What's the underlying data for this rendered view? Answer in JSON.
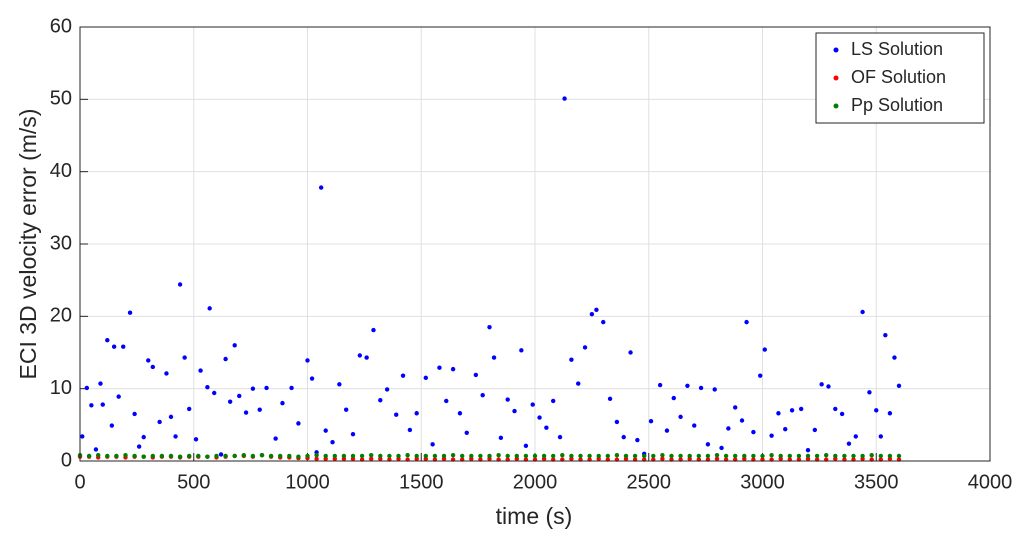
{
  "chart_data": {
    "type": "scatter",
    "xlabel": "time (s)",
    "ylabel": "ECI 3D velocity error (m/s)",
    "xlim": [
      0,
      4000
    ],
    "xticks": [
      0,
      500,
      1000,
      1500,
      2000,
      2500,
      3000,
      3500,
      4000
    ],
    "ylim": [
      0,
      60
    ],
    "yticks": [
      0,
      10,
      20,
      30,
      40,
      50,
      60
    ],
    "grid": true,
    "legend": "northeast",
    "series": [
      {
        "name": "LS Solution",
        "color": "#0000ff",
        "x": [
          10,
          30,
          50,
          70,
          90,
          100,
          120,
          140,
          150,
          170,
          190,
          220,
          240,
          260,
          280,
          300,
          320,
          350,
          380,
          400,
          420,
          440,
          460,
          480,
          510,
          530,
          560,
          570,
          590,
          620,
          640,
          660,
          680,
          700,
          730,
          760,
          790,
          820,
          860,
          890,
          930,
          960,
          1000,
          1020,
          1040,
          1060,
          1080,
          1110,
          1140,
          1170,
          1200,
          1230,
          1260,
          1290,
          1320,
          1350,
          1390,
          1420,
          1450,
          1480,
          1520,
          1550,
          1580,
          1610,
          1640,
          1670,
          1700,
          1740,
          1770,
          1800,
          1820,
          1850,
          1880,
          1910,
          1940,
          1960,
          1990,
          2020,
          2050,
          2080,
          2110,
          2130,
          2160,
          2190,
          2220,
          2250,
          2270,
          2300,
          2330,
          2360,
          2390,
          2420,
          2450,
          2480,
          2510,
          2550,
          2580,
          2610,
          2640,
          2670,
          2700,
          2730,
          2760,
          2790,
          2820,
          2850,
          2880,
          2910,
          2930,
          2960,
          2990,
          3010,
          3040,
          3070,
          3100,
          3130,
          3170,
          3200,
          3230,
          3260,
          3290,
          3320,
          3350,
          3380,
          3410,
          3440,
          3470,
          3500,
          3520,
          3540,
          3560,
          3580,
          3600
        ],
        "values": [
          3.4,
          10.1,
          7.7,
          1.6,
          10.7,
          7.8,
          16.7,
          4.9,
          15.8,
          8.9,
          15.8,
          20.5,
          6.5,
          2.0,
          3.3,
          13.9,
          13.0,
          5.4,
          12.1,
          6.1,
          3.4,
          24.4,
          14.3,
          7.2,
          3.0,
          12.5,
          10.2,
          21.1,
          9.4,
          0.9,
          14.1,
          8.2,
          16.0,
          9.0,
          6.7,
          10.0,
          7.1,
          10.1,
          3.1,
          8.0,
          10.1,
          5.2,
          13.9,
          11.4,
          1.2,
          37.8,
          4.2,
          2.6,
          10.6,
          7.1,
          3.7,
          14.6,
          14.3,
          18.1,
          8.4,
          9.9,
          6.4,
          11.8,
          4.3,
          6.6,
          11.5,
          2.3,
          12.9,
          8.3,
          12.7,
          6.6,
          3.9,
          11.9,
          9.1,
          18.5,
          14.3,
          3.2,
          8.5,
          6.9,
          15.3,
          2.1,
          7.8,
          6.0,
          4.6,
          8.3,
          3.3,
          50.1,
          14.0,
          10.7,
          15.7,
          20.3,
          20.9,
          19.2,
          8.6,
          5.4,
          3.3,
          15.0,
          2.9,
          1.0,
          5.5,
          10.5,
          4.2,
          8.7,
          6.1,
          10.4,
          4.9,
          10.1,
          2.3,
          9.9,
          1.8,
          4.5,
          7.4,
          5.6,
          19.2,
          4.0,
          11.8,
          15.4,
          3.5,
          6.6,
          4.4,
          7.0,
          7.2,
          1.5,
          4.3,
          10.6,
          10.3,
          7.2,
          6.5,
          2.4,
          3.4,
          20.6,
          9.5,
          7.0,
          3.4,
          17.4,
          6.6,
          14.3,
          10.4
        ]
      },
      {
        "name": "OF Solution",
        "color": "#ff0000",
        "x": [
          0,
          40,
          80,
          120,
          160,
          200,
          240,
          280,
          320,
          360,
          400,
          440,
          480,
          520,
          560,
          600,
          640,
          680,
          720,
          760,
          800,
          840,
          880,
          920,
          960,
          1000,
          1040,
          1080,
          1120,
          1160,
          1200,
          1240,
          1280,
          1320,
          1360,
          1400,
          1440,
          1480,
          1520,
          1560,
          1600,
          1640,
          1680,
          1720,
          1760,
          1800,
          1840,
          1880,
          1920,
          1960,
          2000,
          2040,
          2080,
          2120,
          2160,
          2200,
          2240,
          2280,
          2320,
          2360,
          2400,
          2440,
          2480,
          2520,
          2560,
          2600,
          2640,
          2680,
          2720,
          2760,
          2800,
          2840,
          2880,
          2920,
          2960,
          3000,
          3040,
          3080,
          3120,
          3160,
          3200,
          3240,
          3280,
          3320,
          3360,
          3400,
          3440,
          3480,
          3520,
          3560,
          3600
        ],
        "values": [
          0.6,
          0.6,
          0.5,
          0.6,
          0.6,
          0.5,
          0.6,
          0.6,
          0.5,
          0.6,
          0.6,
          0.5,
          0.6,
          0.6,
          0.6,
          0.5,
          0.6,
          0.7,
          0.7,
          0.6,
          0.8,
          0.6,
          0.5,
          0.5,
          0.4,
          0.4,
          0.3,
          0.3,
          0.3,
          0.3,
          0.3,
          0.2,
          0.3,
          0.3,
          0.2,
          0.3,
          0.2,
          0.3,
          0.3,
          0.2,
          0.3,
          0.2,
          0.2,
          0.3,
          0.2,
          0.3,
          0.2,
          0.2,
          0.3,
          0.2,
          0.2,
          0.3,
          0.2,
          0.2,
          0.3,
          0.2,
          0.2,
          0.3,
          0.2,
          0.2,
          0.3,
          0.2,
          0.2,
          0.2,
          0.3,
          0.2,
          0.2,
          0.3,
          0.2,
          0.2,
          0.3,
          0.2,
          0.2,
          0.3,
          0.2,
          0.2,
          0.2,
          0.3,
          0.2,
          0.2,
          0.3,
          0.2,
          0.2,
          0.3,
          0.2,
          0.2,
          0.3,
          0.2,
          0.2,
          0.3,
          0.2
        ]
      },
      {
        "name": "Pp Solution",
        "color": "#008000",
        "x": [
          0,
          40,
          80,
          120,
          160,
          200,
          240,
          280,
          320,
          360,
          400,
          440,
          480,
          520,
          560,
          600,
          640,
          680,
          720,
          760,
          800,
          840,
          880,
          920,
          960,
          1000,
          1040,
          1080,
          1120,
          1160,
          1200,
          1240,
          1280,
          1320,
          1360,
          1400,
          1440,
          1480,
          1520,
          1560,
          1600,
          1640,
          1680,
          1720,
          1760,
          1800,
          1840,
          1880,
          1920,
          1960,
          2000,
          2040,
          2080,
          2120,
          2160,
          2200,
          2240,
          2280,
          2320,
          2360,
          2400,
          2440,
          2480,
          2520,
          2560,
          2600,
          2640,
          2680,
          2720,
          2760,
          2800,
          2840,
          2880,
          2920,
          2960,
          3000,
          3040,
          3080,
          3120,
          3160,
          3200,
          3240,
          3280,
          3320,
          3360,
          3400,
          3440,
          3480,
          3520,
          3560,
          3600
        ],
        "values": [
          0.8,
          0.7,
          0.8,
          0.7,
          0.7,
          0.8,
          0.7,
          0.6,
          0.7,
          0.7,
          0.7,
          0.6,
          0.7,
          0.7,
          0.6,
          0.7,
          0.7,
          0.7,
          0.8,
          0.7,
          0.8,
          0.7,
          0.7,
          0.7,
          0.6,
          0.7,
          0.8,
          0.7,
          0.7,
          0.7,
          0.7,
          0.7,
          0.8,
          0.7,
          0.7,
          0.7,
          0.8,
          0.7,
          0.7,
          0.7,
          0.7,
          0.8,
          0.7,
          0.7,
          0.7,
          0.7,
          0.8,
          0.7,
          0.7,
          0.7,
          0.7,
          0.7,
          0.7,
          0.8,
          0.7,
          0.7,
          0.7,
          0.7,
          0.7,
          0.8,
          0.7,
          0.7,
          0.7,
          0.7,
          0.8,
          0.7,
          0.7,
          0.7,
          0.7,
          0.7,
          0.8,
          0.7,
          0.7,
          0.7,
          0.7,
          0.7,
          0.8,
          0.7,
          0.7,
          0.7,
          0.7,
          0.7,
          0.8,
          0.7,
          0.7,
          0.7,
          0.7,
          0.8,
          0.7,
          0.7,
          0.7
        ]
      }
    ]
  }
}
